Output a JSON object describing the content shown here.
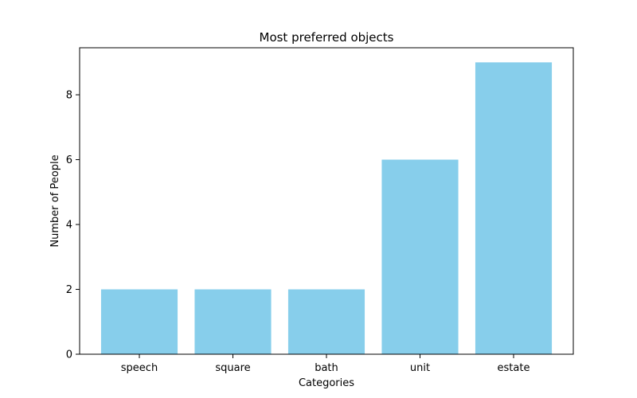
{
  "chart_data": {
    "type": "bar",
    "title": "Most preferred objects",
    "xlabel": "Categories",
    "ylabel": "Number of People",
    "categories": [
      "speech",
      "square",
      "bath",
      "unit",
      "estate"
    ],
    "values": [
      2,
      2,
      2,
      6,
      9
    ],
    "yticks": [
      0,
      2,
      4,
      6,
      8
    ],
    "ylim": [
      0,
      9.45
    ],
    "grid": false,
    "bar_color": "#87CEEB"
  }
}
